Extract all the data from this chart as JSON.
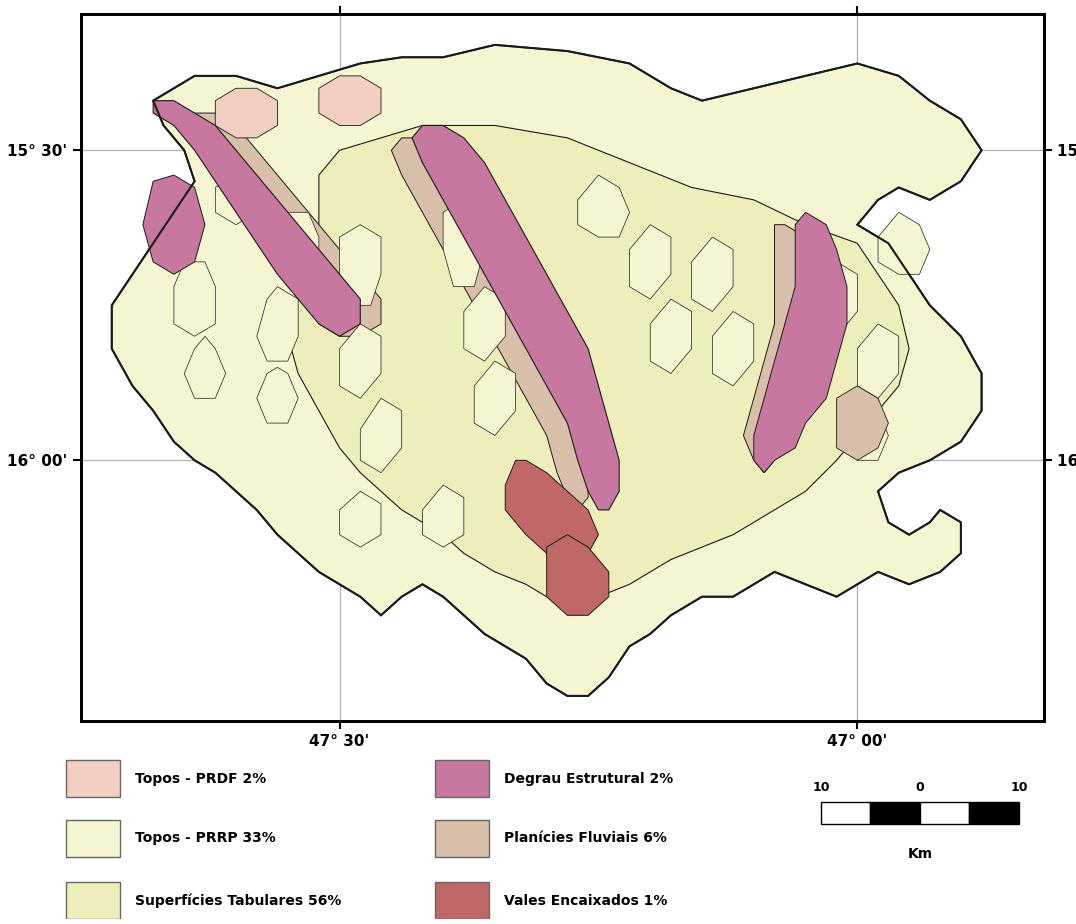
{
  "background_color": "#ffffff",
  "map_bg": "#ffffff",
  "xlim": [
    -47.75,
    -46.82
  ],
  "ylim": [
    -16.42,
    -15.28
  ],
  "grid_color": "#b0b0b0",
  "grid_lw": 0.9,
  "xticks": [
    -47.5,
    -47.0
  ],
  "yticks": [
    -16.0,
    -15.5
  ],
  "xtick_labels": [
    "47° 30'",
    "47° 00'"
  ],
  "ytick_labels": [
    "16° 00'",
    "15° 30'"
  ],
  "legend_items": [
    {
      "label": "Topos - PRDF 2%",
      "color": "#f2cfc0"
    },
    {
      "label": "Topos - PRRP 33%",
      "color": "#f5f5d2"
    },
    {
      "label": "Superfícies Tabulares 56%",
      "color": "#eeeebb"
    },
    {
      "label": "Degrau Estrutural 2%",
      "color": "#c878a0"
    },
    {
      "label": "Planícies Fluviais 6%",
      "color": "#d8bfaa"
    },
    {
      "label": "Vales Encaixados 1%",
      "color": "#c06868"
    }
  ],
  "c_prdf": "#f2cfc0",
  "c_prrp": "#f5f5d2",
  "c_tab": "#eeeebb",
  "c_deg": "#c878a0",
  "c_plan": "#d8bfaa",
  "c_vale": "#c06868",
  "c_outline": "#1a1a1a"
}
